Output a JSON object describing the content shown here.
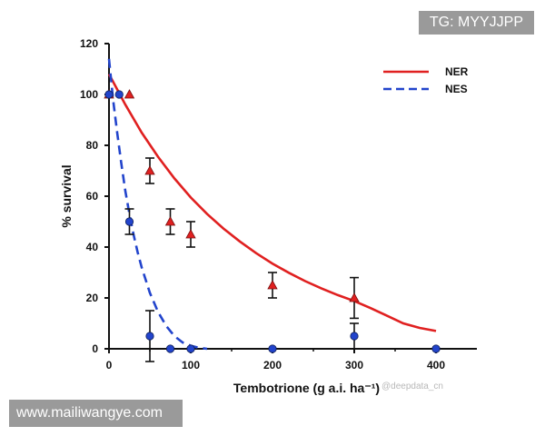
{
  "overlays": {
    "top_right_badge": "TG: MYYJJPP",
    "bottom_left_badge": "www.mailiwangye.com",
    "watermark": "@deepdata_cn"
  },
  "chart_data": {
    "type": "line",
    "title": "",
    "xlabel": "Tembotrione (g a.i. ha⁻¹)",
    "ylabel": "% survival",
    "xlim": [
      0,
      450
    ],
    "ylim": [
      0,
      120
    ],
    "x_ticks": [
      0,
      100,
      200,
      300,
      400
    ],
    "y_ticks": [
      0,
      20,
      40,
      60,
      80,
      100,
      120
    ],
    "grid": false,
    "legend_position": "top-right",
    "series": [
      {
        "name": "NER",
        "color": "#e02020",
        "line_style": "solid",
        "marker": "triangle",
        "points": [
          {
            "x": 0,
            "y": 100,
            "err": 0
          },
          {
            "x": 25,
            "y": 100,
            "err": 0
          },
          {
            "x": 50,
            "y": 70,
            "err": 5
          },
          {
            "x": 75,
            "y": 50,
            "err": 5
          },
          {
            "x": 100,
            "y": 45,
            "err": 5
          },
          {
            "x": 200,
            "y": 25,
            "err": 5
          },
          {
            "x": 300,
            "y": 20,
            "err": 8
          }
        ],
        "fit_x": [
          0,
          20,
          40,
          60,
          80,
          100,
          120,
          140,
          160,
          180,
          200,
          220,
          240,
          260,
          280,
          300,
          320,
          340,
          360,
          380,
          400
        ],
        "fit_y": [
          108,
          96,
          85,
          75.5,
          67,
          59.5,
          53,
          47.3,
          42.2,
          37.6,
          33.5,
          29.9,
          26.6,
          23.7,
          21.1,
          18.8,
          16,
          13,
          10,
          8.2,
          7
        ]
      },
      {
        "name": "NES",
        "color": "#2244cc",
        "line_style": "dashed",
        "marker": "circle",
        "points": [
          {
            "x": 0,
            "y": 100,
            "err": 0
          },
          {
            "x": 12.5,
            "y": 100,
            "err": 0
          },
          {
            "x": 25,
            "y": 50,
            "err": 5
          },
          {
            "x": 50,
            "y": 5,
            "err": 10
          },
          {
            "x": 75,
            "y": 0,
            "err": 0
          },
          {
            "x": 100,
            "y": 0,
            "err": 0
          },
          {
            "x": 200,
            "y": 0,
            "err": 0
          },
          {
            "x": 300,
            "y": 5,
            "err": 5
          },
          {
            "x": 400,
            "y": 0,
            "err": 0
          }
        ],
        "fit_x": [
          0,
          5,
          10,
          15,
          20,
          25,
          30,
          35,
          40,
          45,
          50,
          60,
          70,
          80,
          90,
          100,
          110,
          120
        ],
        "fit_y": [
          114,
          98,
          85,
          73,
          62,
          53,
          45,
          38,
          32,
          27,
          22,
          14.5,
          9,
          5,
          2.5,
          1.2,
          0.4,
          0
        ]
      }
    ]
  }
}
